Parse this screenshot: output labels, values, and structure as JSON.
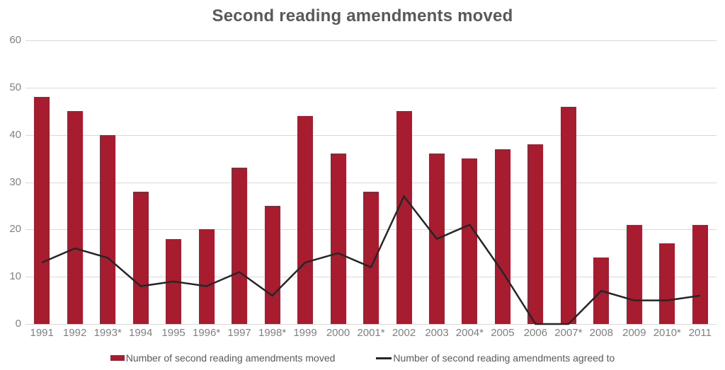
{
  "title": "Second reading amendments moved",
  "colors": {
    "bar": "#A81C30",
    "line": "#262626",
    "grid": "#D9D9D9",
    "axis_text": "#808080",
    "title_text": "#595959",
    "legend_text": "#595959",
    "background": "#FFFFFF"
  },
  "legend": {
    "items": [
      {
        "label": "Number of second reading amendments moved",
        "swatch": "bar-swatch"
      },
      {
        "label": "Number of second reading amendments agreed to",
        "swatch": "line-swatch"
      }
    ]
  },
  "chart_data": {
    "type": "bar",
    "title": "Second reading amendments moved",
    "xlabel": "",
    "ylabel": "",
    "categories": [
      "1991",
      "1992",
      "1993*",
      "1994",
      "1995",
      "1996*",
      "1997",
      "1998*",
      "1999",
      "2000",
      "2001*",
      "2002",
      "2003",
      "2004*",
      "2005",
      "2006",
      "2007*",
      "2008",
      "2009",
      "2010*",
      "2011"
    ],
    "series": [
      {
        "name": "Number of second reading amendments moved",
        "type": "bar",
        "values": [
          48,
          45,
          40,
          28,
          18,
          20,
          33,
          25,
          44,
          36,
          28,
          45,
          36,
          35,
          37,
          38,
          46,
          14,
          21,
          17,
          21
        ]
      },
      {
        "name": "Number of second reading amendments agreed to",
        "type": "line",
        "values": [
          13,
          16,
          14,
          8,
          9,
          8,
          11,
          6,
          13,
          15,
          12,
          27,
          18,
          21,
          11,
          0,
          0,
          7,
          5,
          5,
          6
        ]
      }
    ],
    "ylim": [
      0,
      60
    ],
    "ytick_interval": 10,
    "grid": true,
    "legend_position": "bottom"
  }
}
